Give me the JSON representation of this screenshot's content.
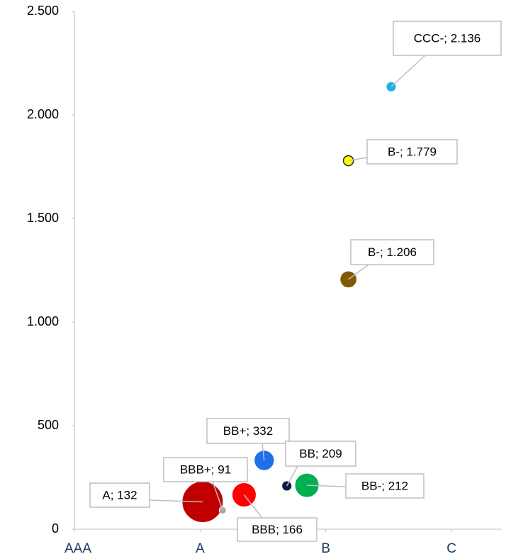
{
  "chart_data": {
    "type": "bubble",
    "xlim": [
      0,
      3.4
    ],
    "ylim": [
      0,
      2500
    ],
    "xticks": [
      {
        "value": 0,
        "label": "AAA"
      },
      {
        "value": 1,
        "label": "A"
      },
      {
        "value": 2,
        "label": "B"
      },
      {
        "value": 3,
        "label": "C"
      }
    ],
    "yticks": [
      0,
      500,
      {
        "value": 1000,
        "label": "1.000"
      },
      {
        "value": 1500,
        "label": "1.500"
      },
      {
        "value": 2000,
        "label": "2.000"
      },
      {
        "value": 2500,
        "label": "2.500"
      }
    ],
    "points": [
      {
        "x": 1.02,
        "y": 132,
        "size": 840,
        "color": "#c00000",
        "label": "A; 132"
      },
      {
        "x": 1.18,
        "y": 91,
        "size": 25,
        "color": "#a6a6a6",
        "label": "BBB+; 91"
      },
      {
        "x": 1.35,
        "y": 166,
        "size": 290,
        "color": "#ff0000",
        "label": "BBB; 166"
      },
      {
        "x": 1.51,
        "y": 332,
        "size": 200,
        "color": "#1f6fe8",
        "label": "BB+; 332"
      },
      {
        "x": 1.69,
        "y": 209,
        "size": 50,
        "color": "#0b1f3f",
        "label": "BB; 209"
      },
      {
        "x": 1.85,
        "y": 212,
        "size": 290,
        "color": "#00b050",
        "label": "BB-; 212"
      },
      {
        "x": 2.18,
        "y": 1206,
        "size": 140,
        "color": "#7f5a00",
        "label": "B-; 1.206"
      },
      {
        "x": 2.18,
        "y": 1779,
        "size": 50,
        "color": "#ffff00",
        "label": "B-; 1.779"
      },
      {
        "x": 2.52,
        "y": 2136,
        "size": 50,
        "color": "#1fb0e8",
        "label": "CCC-; 2.136"
      }
    ]
  }
}
